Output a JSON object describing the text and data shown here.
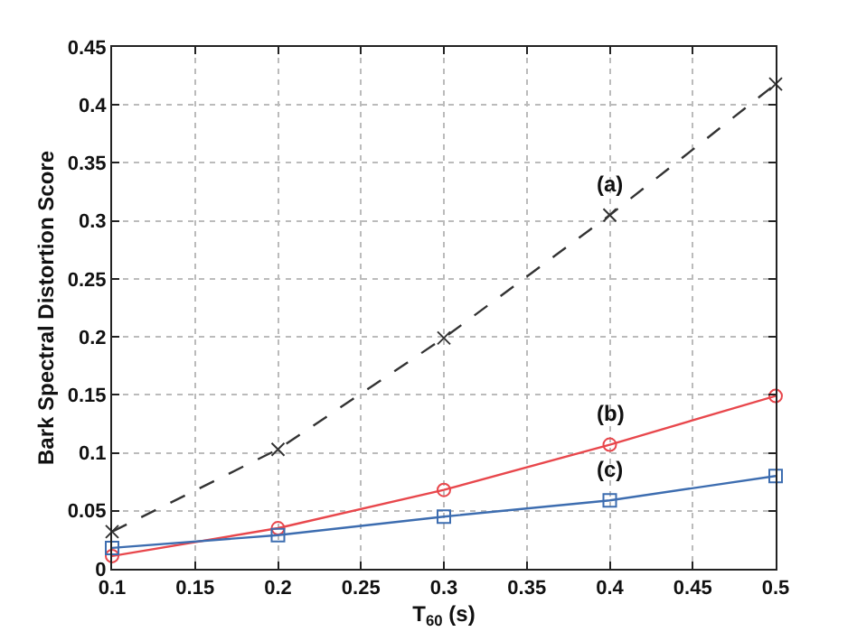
{
  "chart_data": {
    "type": "line",
    "xlabel": "T$_{60}$ (s)",
    "ylabel": "Bark Spectral Distortion Score",
    "x": [
      0.1,
      0.2,
      0.3,
      0.4,
      0.5
    ],
    "series": [
      {
        "name": "(a)",
        "color": "#333333",
        "marker": "cross",
        "line_style": "dashed",
        "values": [
          0.032,
          0.103,
          0.199,
          0.305,
          0.418
        ]
      },
      {
        "name": "(b)",
        "color": "#e8474c",
        "marker": "circle",
        "line_style": "solid",
        "values": [
          0.011,
          0.035,
          0.068,
          0.107,
          0.149
        ]
      },
      {
        "name": "(c)",
        "color": "#3d6db0",
        "marker": "square",
        "line_style": "solid",
        "values": [
          0.018,
          0.029,
          0.045,
          0.059,
          0.08
        ]
      }
    ],
    "xlim": [
      0.1,
      0.5
    ],
    "xticks": [
      0.1,
      0.15,
      0.2,
      0.25,
      0.3,
      0.35,
      0.4,
      0.45,
      0.5
    ],
    "ylim": [
      0,
      0.45
    ],
    "yticks": [
      0,
      0.05,
      0.1,
      0.15,
      0.2,
      0.25,
      0.3,
      0.35,
      0.4,
      0.45
    ],
    "grid": true
  }
}
